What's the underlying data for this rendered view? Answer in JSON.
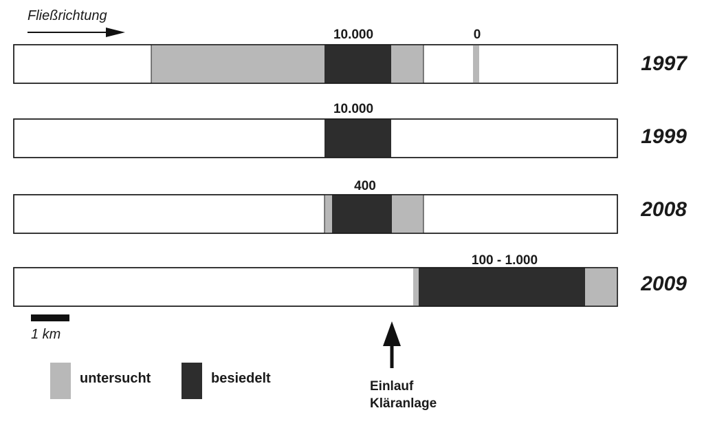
{
  "flow_direction_label": "Fließrichtung",
  "scale_bar_label": "1 km",
  "colors": {
    "examined": "#b8b8b8",
    "colonized": "#2d2d2d",
    "stream": "#ffffff",
    "outline": "#1a1a1a"
  },
  "legend": {
    "examined_label": "untersucht",
    "colonized_label": "besiedelt"
  },
  "inflow_marker": {
    "line1": "Einlauf",
    "line2": "Kläranlage"
  },
  "rows": [
    {
      "year": "1997",
      "count_labels": [
        "10.000",
        "0"
      ]
    },
    {
      "year": "1999",
      "count_labels": [
        "10.000"
      ]
    },
    {
      "year": "2008",
      "count_labels": [
        "400"
      ]
    },
    {
      "year": "2009",
      "count_labels": [
        "100 - 1.000"
      ]
    }
  ]
}
